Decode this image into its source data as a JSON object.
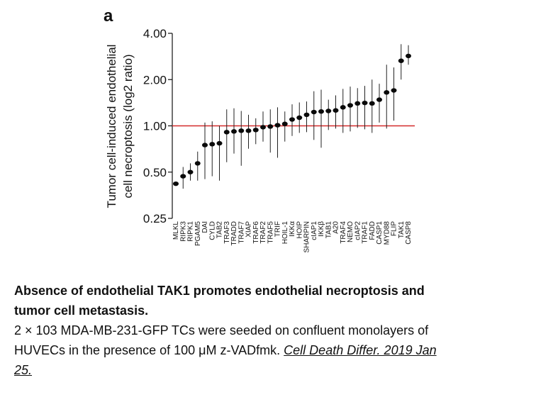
{
  "chart_data": {
    "type": "scatter",
    "panel_label": "a",
    "ylabel_lines": [
      "Tumor cell-induced endothelial",
      "cell necroptosis (log2 ratio)"
    ],
    "y_scale": "log2",
    "ylim": [
      0.25,
      4.0
    ],
    "y_ticks": [
      4.0,
      2.0,
      1.0,
      0.5,
      0.25
    ],
    "y_tick_labels": [
      "4.00",
      "2.00",
      "1.00",
      "0.50",
      "0.25"
    ],
    "reference_line": {
      "y": 1.0,
      "color": "#d42a2a"
    },
    "categories": [
      "MLKL",
      "RIPK3",
      "RIPK1",
      "PGAM5",
      "DAI",
      "CYLD",
      "TAB2",
      "TRAF3",
      "TRADD",
      "TRAF7",
      "XIAP",
      "TRAF6",
      "TRAF2",
      "TRAF5",
      "TRIF",
      "HOIL-1",
      "IKKα",
      "HOIP",
      "SHARPIN",
      "cIAP1",
      "IKKβ",
      "TAB1",
      "A20",
      "TRAF4",
      "NEMO",
      "cIAP2",
      "TRAF1",
      "FADD",
      "CASP1",
      "MYD88",
      "FLIP",
      "TAK1",
      "CASP8"
    ],
    "series": [
      {
        "name": "log2 ratio",
        "values": [
          0.42,
          0.47,
          0.5,
          0.57,
          0.75,
          0.76,
          0.77,
          0.91,
          0.92,
          0.93,
          0.93,
          0.94,
          0.98,
          0.99,
          1.01,
          1.03,
          1.1,
          1.13,
          1.18,
          1.23,
          1.24,
          1.25,
          1.26,
          1.32,
          1.36,
          1.4,
          1.41,
          1.4,
          1.48,
          1.65,
          1.7,
          2.65,
          2.85
        ],
        "lower": [
          0.41,
          0.39,
          0.44,
          0.44,
          0.45,
          0.47,
          0.44,
          0.58,
          0.66,
          0.55,
          0.71,
          0.76,
          0.79,
          0.67,
          0.62,
          0.79,
          0.86,
          0.9,
          0.91,
          0.81,
          0.72,
          0.94,
          0.96,
          0.9,
          0.92,
          0.97,
          0.95,
          0.9,
          1.05,
          0.96,
          1.08,
          2.0,
          2.5
        ],
        "upper": [
          0.43,
          0.54,
          0.57,
          0.68,
          1.05,
          1.07,
          1.0,
          1.28,
          1.3,
          1.25,
          1.18,
          1.12,
          1.24,
          1.28,
          1.32,
          1.24,
          1.38,
          1.42,
          1.44,
          1.68,
          1.72,
          1.48,
          1.58,
          1.74,
          1.8,
          1.76,
          1.82,
          2.0,
          1.88,
          2.5,
          2.4,
          3.4,
          3.35
        ]
      }
    ]
  },
  "caption": {
    "title_line1": "Absence of endothelial TAK1 promotes endothelial necroptosis and",
    "title_line2": "tumor cell metastasis.",
    "body_line1": "2 × 103 MDA-MB-231-GFP TCs were seeded on confluent monolayers of",
    "body_line2_text": "HUVECs in the presence of 100 μM z-VADfmk. ",
    "citation_part1": "Cell Death Differ. 2019 Jan",
    "citation_part2": "25. "
  }
}
